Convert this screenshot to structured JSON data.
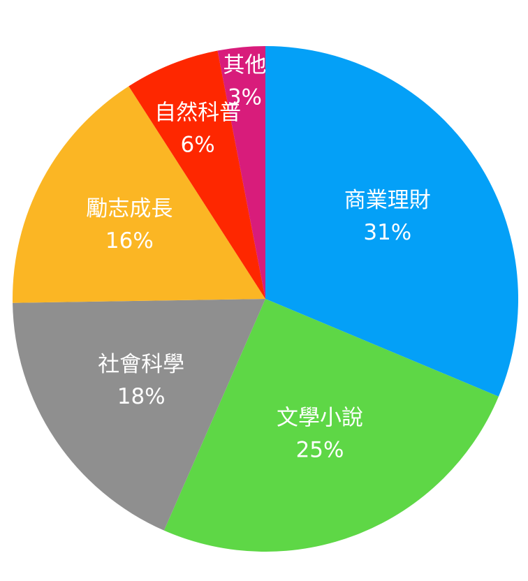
{
  "chart_data": {
    "type": "pie",
    "title": "",
    "slices": [
      {
        "label": "商業理財",
        "value": 31,
        "value_label": "31%",
        "color": "#04a0f7"
      },
      {
        "label": "文學小說",
        "value": 25,
        "value_label": "25%",
        "color": "#5ed746"
      },
      {
        "label": "社會科學",
        "value": 18,
        "value_label": "18%",
        "color": "#8f8f8f"
      },
      {
        "label": "勵志成長",
        "value": 16,
        "value_label": "16%",
        "color": "#fbb624"
      },
      {
        "label": "自然科普",
        "value": 6,
        "value_label": "6%",
        "color": "#fe2700"
      },
      {
        "label": "其他",
        "value": 3,
        "value_label": "3%",
        "color": "#d81c7b"
      }
    ],
    "start_angle_deg": 0,
    "direction": "clockwise",
    "legend": "none"
  }
}
